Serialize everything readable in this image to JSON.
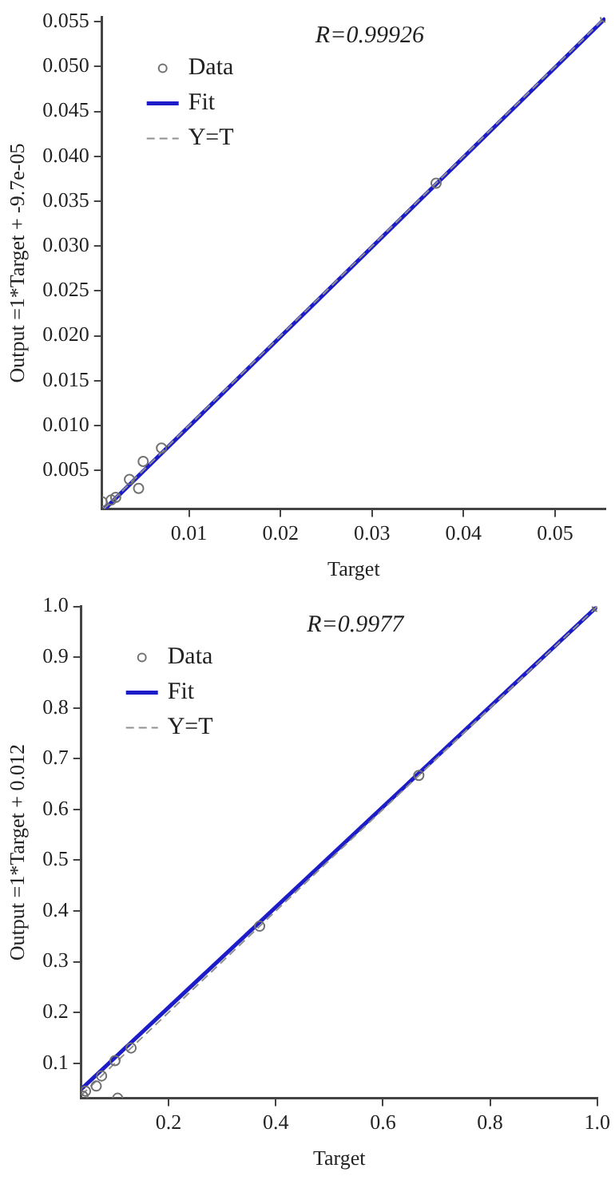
{
  "chart_data": [
    {
      "type": "scatter",
      "xlabel": "Target",
      "ylabel": "Output =1*Target + -9.7e-05",
      "annotations": [
        "R=0.99926"
      ],
      "legend": "top left",
      "grid": false,
      "xlim": [
        0.0005,
        0.0555
      ],
      "xticks": [
        0.01,
        0.02,
        0.03,
        0.04,
        0.05
      ],
      "ylim": [
        0.0007,
        0.0555
      ],
      "yticks": [
        0.005,
        {
          "value": 0.01,
          "label": "0.010"
        },
        0.015,
        {
          "value": 0.02,
          "label": "0.020"
        },
        0.025,
        {
          "value": 0.03,
          "label": "0.030"
        },
        0.035,
        {
          "value": 0.04,
          "label": "0.040"
        },
        0.045,
        {
          "value": 0.05,
          "label": "0.050"
        },
        0.055
      ],
      "series": [
        {
          "name": "Data",
          "type": "scatter",
          "marker": "circle",
          "color": "#707070",
          "x": [
            0.0005,
            0.0015,
            0.002,
            0.0035,
            0.0045,
            0.005,
            0.007,
            0.037,
            0.0555
          ],
          "values": [
            0.0015,
            0.0017,
            0.002,
            0.004,
            0.003,
            0.006,
            0.0075,
            0.037,
            0.0555
          ]
        },
        {
          "name": "Fit",
          "type": "line",
          "marker": "none",
          "line_style": "solid",
          "color": "#1c1cc8",
          "x": [
            0.0008,
            0.0555
          ],
          "values": [
            0.0007,
            0.0554
          ]
        },
        {
          "name": "Y=T",
          "type": "line",
          "marker": "none",
          "line_style": "dashed",
          "color": "#909090",
          "x": [
            0.0007,
            0.0555
          ],
          "values": [
            0.0007,
            0.0555
          ]
        }
      ]
    },
    {
      "type": "scatter",
      "xlabel": "Target",
      "ylabel": "Output =1*Target + 0.012",
      "annotations": [
        "R=0.9977"
      ],
      "legend": "top left",
      "grid": false,
      "xlim": [
        0.037,
        1.0
      ],
      "xticks": [
        0.2,
        0.4,
        0.6,
        0.8,
        {
          "value": 1,
          "label": "1.0"
        }
      ],
      "ylim": [
        0.031,
        1.0
      ],
      "yticks": [
        0.1,
        0.2,
        0.3,
        0.4,
        0.5,
        0.6,
        0.7,
        0.8,
        0.9,
        {
          "value": 1,
          "label": "1.0"
        }
      ],
      "series": [
        {
          "name": "Data",
          "type": "scatter",
          "marker": "circle",
          "color": "#707070",
          "x": [
            0.04,
            0.045,
            0.065,
            0.075,
            0.1,
            0.13,
            0.105,
            0.37,
            0.667,
            1.0
          ],
          "values": [
            0.035,
            0.045,
            0.055,
            0.075,
            0.105,
            0.13,
            0.031,
            0.37,
            0.667,
            1.0
          ]
        },
        {
          "name": "Fit",
          "type": "line",
          "marker": "none",
          "line_style": "solid",
          "color": "#1c1cc8",
          "x": [
            0.037,
            1.0
          ],
          "values": [
            0.049,
            1.0
          ]
        },
        {
          "name": "Y=T",
          "type": "line",
          "marker": "none",
          "line_style": "dashed",
          "color": "#909090",
          "x": [
            0.037,
            1.0
          ],
          "values": [
            0.037,
            1.0
          ]
        }
      ]
    }
  ]
}
